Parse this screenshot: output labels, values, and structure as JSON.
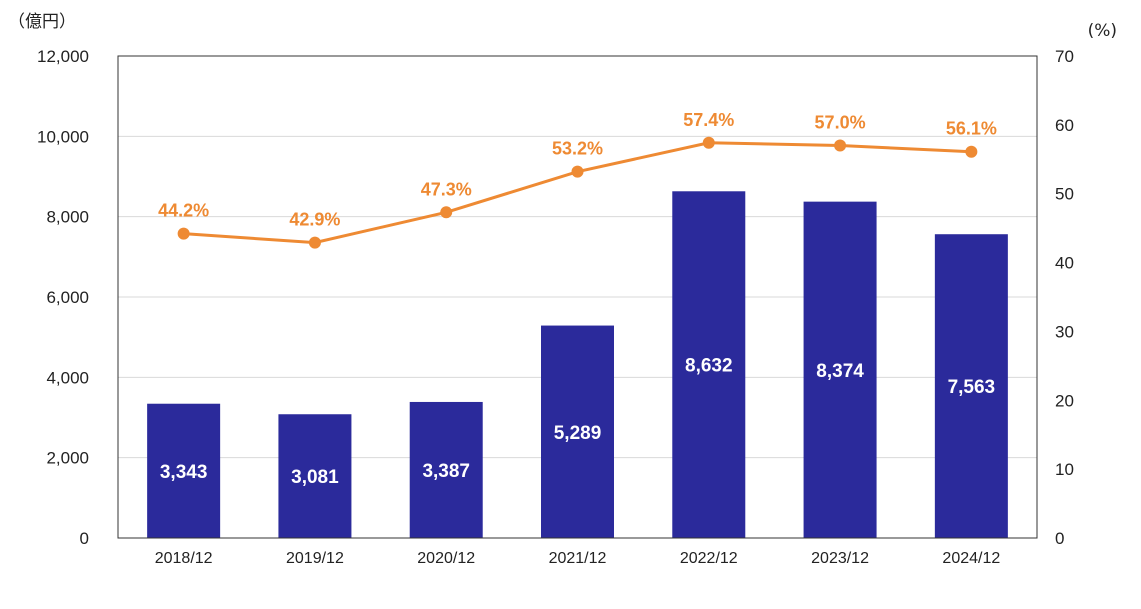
{
  "chart_data": {
    "type": "bar",
    "categories": [
      "2018/12",
      "2019/12",
      "2020/12",
      "2021/12",
      "2022/12",
      "2023/12",
      "2024/12"
    ],
    "series": [
      {
        "type": "bar",
        "axis": "left",
        "values": [
          3343,
          3081,
          3387,
          5289,
          8632,
          8374,
          7563
        ],
        "labels": [
          "3,343",
          "3,081",
          "3,387",
          "5,289",
          "8,632",
          "8,374",
          "7,563"
        ],
        "color": "#2b2a9b"
      },
      {
        "type": "line",
        "axis": "right",
        "values": [
          44.2,
          42.9,
          47.3,
          53.2,
          57.4,
          57.0,
          56.1
        ],
        "labels": [
          "44.2%",
          "42.9%",
          "47.3%",
          "53.2%",
          "57.4%",
          "57.0%",
          "56.1%"
        ],
        "color": "#ee8a33"
      }
    ],
    "ylabel_left": "（億円）",
    "ylabel_right": "(%)",
    "ylim_left": [
      0,
      12000
    ],
    "ylim_right": [
      0,
      70
    ],
    "yticks_left": [
      0,
      2000,
      4000,
      6000,
      8000,
      10000,
      12000
    ],
    "yticks_left_labels": [
      "0",
      "2,000",
      "4,000",
      "6,000",
      "8,000",
      "10,000",
      "12,000"
    ],
    "yticks_right": [
      0,
      10,
      20,
      30,
      40,
      50,
      60,
      70
    ],
    "yticks_right_labels": [
      "0",
      "10",
      "20",
      "30",
      "40",
      "50",
      "60",
      "70"
    ],
    "grid": true,
    "gridline_color": "#d9d9d9",
    "frame_color": "#333333"
  }
}
